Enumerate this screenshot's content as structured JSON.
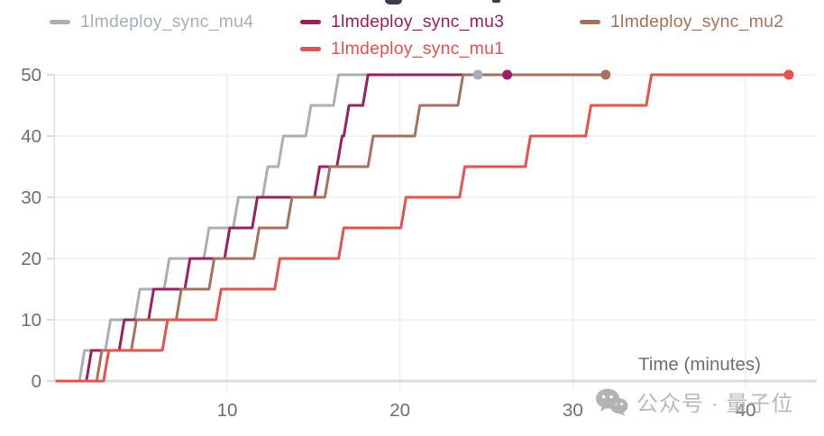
{
  "page": {
    "cropped_title_visible": true
  },
  "legend": {
    "items": [
      {
        "label": "1lmdeploy_sync_mu4",
        "color": "#a6b0b7"
      },
      {
        "label": "1lmdeploy_sync_mu3",
        "color": "#9c1f63"
      },
      {
        "label": "1lmdeploy_sync_mu2",
        "color": "#a8715a"
      },
      {
        "label": "1lmdeploy_sync_mu1",
        "color": "#e8514d"
      }
    ]
  },
  "watermark": {
    "icon": "wechat-icon",
    "text": "公众号 · 量子位"
  },
  "chart_data": {
    "type": "line",
    "subtype": "step",
    "title": "",
    "xlabel": "Time (minutes)",
    "ylabel": "",
    "xlim": [
      0,
      44.1
    ],
    "ylim": [
      0,
      50
    ],
    "x_ticks": [
      10,
      20,
      30,
      40
    ],
    "y_ticks": [
      0,
      10,
      20,
      30,
      40,
      50
    ],
    "grid": true,
    "legend_position": "top",
    "tick_color": "#6c6c7e",
    "grid_color": "#ececef",
    "axis_color": "#dcdcdf",
    "series": [
      {
        "name": "1lmdeploy_sync_mu4",
        "color": "#a6b0b7",
        "start": [
          0.15,
          0
        ],
        "steps": [
          [
            1.6,
            5
          ],
          [
            3.1,
            10
          ],
          [
            4.8,
            15
          ],
          [
            6.5,
            20
          ],
          [
            8.8,
            25
          ],
          [
            10.5,
            30
          ],
          [
            12.2,
            35
          ],
          [
            13.1,
            40
          ],
          [
            14.7,
            45
          ],
          [
            16.3,
            50
          ]
        ],
        "end_time": 24.5,
        "final_value": 50
      },
      {
        "name": "1lmdeploy_sync_mu3",
        "color": "#9c1f63",
        "start": [
          0.15,
          0
        ],
        "steps": [
          [
            2.0,
            5
          ],
          [
            3.9,
            10
          ],
          [
            5.6,
            15
          ],
          [
            7.7,
            20
          ],
          [
            10.0,
            25
          ],
          [
            11.6,
            30
          ],
          [
            15.2,
            35
          ],
          [
            16.5,
            40
          ],
          [
            16.9,
            45
          ],
          [
            18.0,
            50
          ]
        ],
        "end_time": 26.2,
        "final_value": 50
      },
      {
        "name": "1lmdeploy_sync_mu2",
        "color": "#a8715a",
        "start": [
          0.15,
          0
        ],
        "steps": [
          [
            2.6,
            5
          ],
          [
            4.6,
            10
          ],
          [
            7.2,
            15
          ],
          [
            9.1,
            20
          ],
          [
            11.7,
            25
          ],
          [
            13.6,
            30
          ],
          [
            15.8,
            35
          ],
          [
            18.3,
            40
          ],
          [
            21.0,
            45
          ],
          [
            23.5,
            50
          ]
        ],
        "end_time": 31.9,
        "final_value": 50
      },
      {
        "name": "1lmdeploy_sync_mu1",
        "color": "#e8514d",
        "start": [
          0.15,
          0
        ],
        "steps": [
          [
            3.0,
            5
          ],
          [
            6.4,
            10
          ],
          [
            9.5,
            15
          ],
          [
            12.9,
            20
          ],
          [
            16.6,
            25
          ],
          [
            20.2,
            30
          ],
          [
            23.6,
            35
          ],
          [
            27.4,
            40
          ],
          [
            30.9,
            45
          ],
          [
            34.4,
            50
          ]
        ],
        "end_time": 42.5,
        "final_value": 50
      }
    ]
  }
}
